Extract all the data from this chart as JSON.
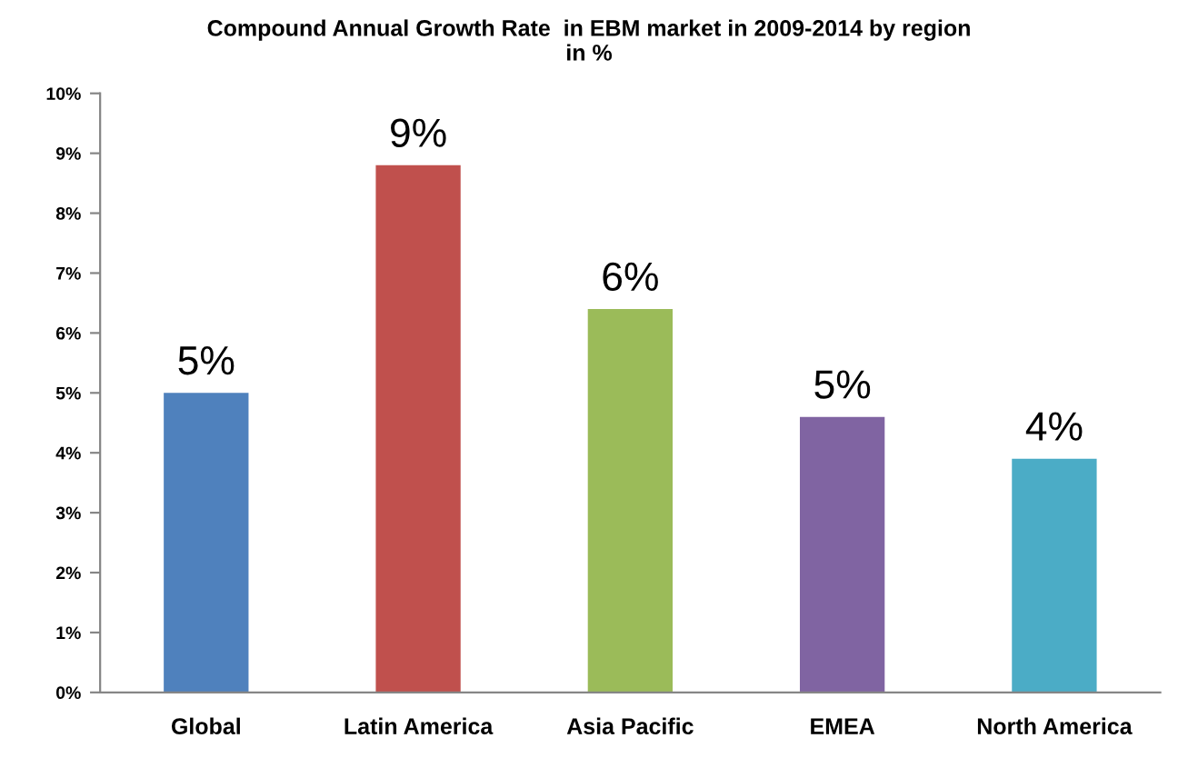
{
  "chart_data": {
    "type": "bar",
    "title": "Compound Annual Growth Rate  in EBM market in 2009-2014 by region\nin %",
    "categories": [
      "Global",
      "Latin America",
      "Asia Pacific",
      "EMEA",
      "North America"
    ],
    "values": [
      5.0,
      8.8,
      6.4,
      4.6,
      3.9
    ],
    "colors": [
      "#4f81bd",
      "#c0504d",
      "#9bbb59",
      "#8064a2",
      "#4bacc6"
    ],
    "value_labels": [
      "5%",
      "9%",
      "6%",
      "5%",
      "4%"
    ],
    "ylim": [
      0,
      10
    ],
    "yticks": [
      {
        "value": 0,
        "label": "0%"
      },
      {
        "value": 1,
        "label": "1%"
      },
      {
        "value": 2,
        "label": "2%"
      },
      {
        "value": 3,
        "label": "3%"
      },
      {
        "value": 4,
        "label": "4%"
      },
      {
        "value": 5,
        "label": "5%"
      },
      {
        "value": 6,
        "label": "6%"
      },
      {
        "value": 7,
        "label": "7%"
      },
      {
        "value": 8,
        "label": "8%"
      },
      {
        "value": 9,
        "label": "9%"
      },
      {
        "value": 10,
        "label": "10%"
      }
    ],
    "grid": false,
    "legend": false
  }
}
